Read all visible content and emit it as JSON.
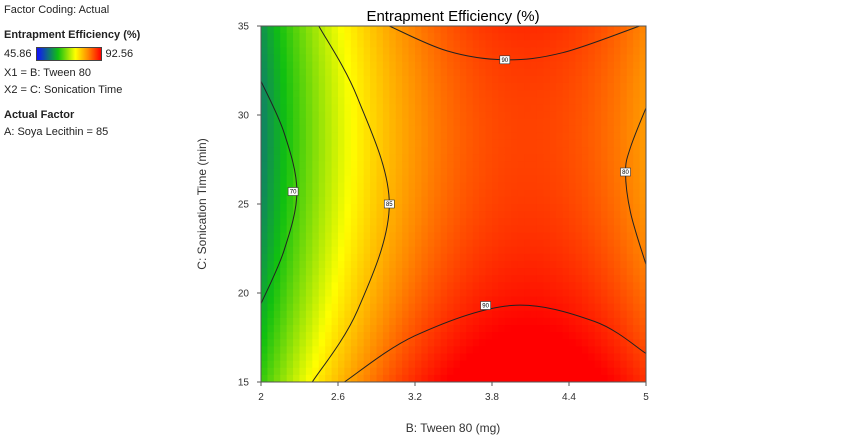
{
  "sidebar": {
    "factor_coding": "Factor Coding: Actual",
    "response_title": "Entrapment Efficiency (%)",
    "legend_min": "45.86",
    "legend_max": "92.56",
    "x1": "X1 = B: Tween 80",
    "x2": "X2 = C: Sonication Time",
    "actual_factor_title": "Actual Factor",
    "actual_factor": "A: Soya Lecithin = 85"
  },
  "colors": {
    "low": "#1010ff",
    "mid_low": "#10c010",
    "mid": "#ffff00",
    "high": "#ff0000"
  },
  "chart_data": {
    "type": "heatmap",
    "title": "Entrapment Efficiency (%)",
    "xlabel": "B: Tween 80 (mg)",
    "ylabel": "C: Sonication Time  (min)",
    "xlim": [
      2,
      5
    ],
    "ylim": [
      15,
      35
    ],
    "x_ticks": [
      "2",
      "2.6",
      "3.2",
      "3.8",
      "4.4",
      "5"
    ],
    "y_ticks": [
      "15",
      "20",
      "25",
      "30",
      "35"
    ],
    "color_range": [
      45.86,
      92.56
    ],
    "contours": [
      {
        "level": "70",
        "label_at": [
          2.25,
          25.7
        ],
        "points": [
          [
            2.0,
            31.9
          ],
          [
            2.18,
            29.0
          ],
          [
            2.28,
            25.7
          ],
          [
            2.18,
            22.4
          ],
          [
            2.0,
            19.4
          ]
        ]
      },
      {
        "level": "85",
        "label_at": [
          3.0,
          25.0
        ],
        "points": [
          [
            2.45,
            35.0
          ],
          [
            2.75,
            31.0
          ],
          [
            3.0,
            25.0
          ],
          [
            2.75,
            19.0
          ],
          [
            2.4,
            15.0
          ]
        ]
      },
      {
        "level": "90",
        "label_at": [
          3.9,
          33.1
        ],
        "points": [
          [
            3.0,
            35.0
          ],
          [
            3.45,
            33.6
          ],
          [
            3.9,
            33.1
          ],
          [
            4.35,
            33.5
          ],
          [
            4.95,
            35.0
          ]
        ]
      },
      {
        "level": "90",
        "label_at": [
          3.75,
          19.3
        ],
        "points": [
          [
            2.65,
            15.0
          ],
          [
            3.2,
            17.6
          ],
          [
            3.95,
            19.3
          ],
          [
            4.6,
            18.4
          ],
          [
            5.0,
            16.6
          ]
        ]
      },
      {
        "level": "80",
        "label_at": [
          4.84,
          26.8
        ],
        "points": [
          [
            5.0,
            30.4
          ],
          [
            4.88,
            28.2
          ],
          [
            4.84,
            26.8
          ],
          [
            4.88,
            24.5
          ],
          [
            5.0,
            21.6
          ]
        ]
      }
    ]
  }
}
